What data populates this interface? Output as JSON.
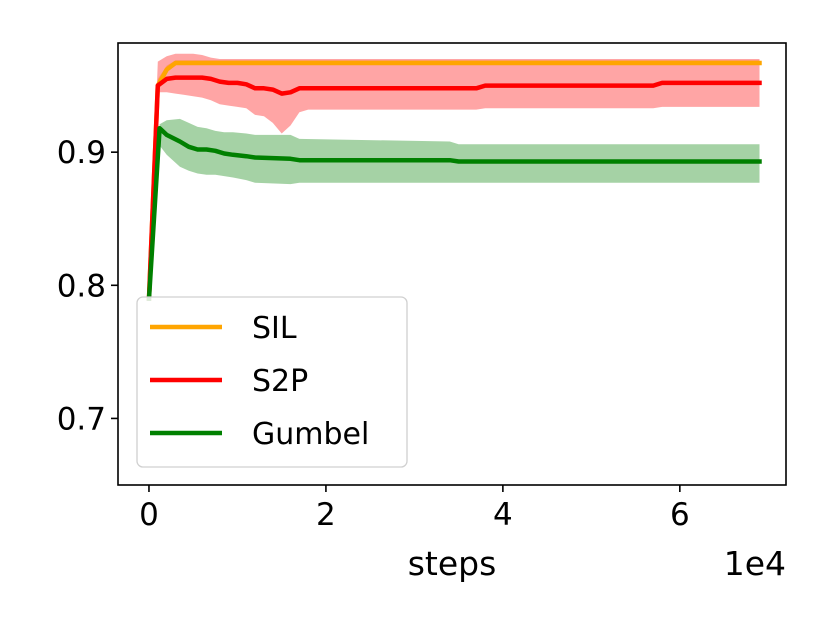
{
  "chart_data": {
    "type": "line",
    "title": "",
    "xlabel": "steps",
    "ylabel": "",
    "x_offset_label": "1e4",
    "x_scale_multiplier": 10000,
    "xlim": [
      -3500,
      72000
    ],
    "ylim": [
      0.65,
      0.982
    ],
    "x_ticks": [
      {
        "value": 0,
        "label": "0"
      },
      {
        "value": 20000,
        "label": "2"
      },
      {
        "value": 40000,
        "label": "4"
      },
      {
        "value": 60000,
        "label": "6"
      }
    ],
    "y_ticks": [
      {
        "value": 0.7,
        "label": "0.7"
      },
      {
        "value": 0.8,
        "label": "0.8"
      },
      {
        "value": 0.9,
        "label": "0.9"
      }
    ],
    "grid": false,
    "legend": {
      "position": "lower-left"
    },
    "series": [
      {
        "name": "SIL",
        "color": "#ffa500",
        "band_color": "#ffa500",
        "x": [
          0,
          1000,
          2000,
          3000,
          5000,
          10000,
          20000,
          35000,
          50000,
          69000
        ],
        "y": [
          0.79,
          0.95,
          0.962,
          0.967,
          0.967,
          0.967,
          0.967,
          0.967,
          0.967,
          0.967
        ],
        "lower": [
          0.79,
          0.945,
          0.96,
          0.966,
          0.966,
          0.966,
          0.966,
          0.966,
          0.966,
          0.966
        ],
        "upper": [
          0.79,
          0.955,
          0.965,
          0.969,
          0.969,
          0.969,
          0.969,
          0.969,
          0.969,
          0.969
        ]
      },
      {
        "name": "S2P",
        "color": "#ff0000",
        "band_color": "#ff7f7f",
        "x": [
          0,
          1000,
          2000,
          3000,
          4000,
          5000,
          6000,
          7000,
          8000,
          9000,
          10000,
          11000,
          12000,
          13000,
          14000,
          15000,
          16000,
          17000,
          18000,
          25000,
          30000,
          37000,
          38000,
          45000,
          50000,
          57000,
          58000,
          63000,
          69000
        ],
        "y": [
          0.79,
          0.95,
          0.955,
          0.956,
          0.956,
          0.956,
          0.956,
          0.955,
          0.953,
          0.952,
          0.952,
          0.951,
          0.948,
          0.948,
          0.947,
          0.944,
          0.945,
          0.948,
          0.948,
          0.948,
          0.948,
          0.948,
          0.95,
          0.95,
          0.95,
          0.95,
          0.952,
          0.952,
          0.952
        ],
        "lower": [
          0.79,
          0.945,
          0.945,
          0.944,
          0.943,
          0.942,
          0.941,
          0.939,
          0.936,
          0.935,
          0.934,
          0.933,
          0.928,
          0.927,
          0.922,
          0.914,
          0.92,
          0.93,
          0.932,
          0.932,
          0.932,
          0.932,
          0.933,
          0.933,
          0.933,
          0.933,
          0.934,
          0.934,
          0.934
        ],
        "upper": [
          0.79,
          0.968,
          0.972,
          0.974,
          0.974,
          0.974,
          0.973,
          0.971,
          0.97,
          0.97,
          0.97,
          0.97,
          0.97,
          0.97,
          0.97,
          0.97,
          0.97,
          0.97,
          0.97,
          0.97,
          0.97,
          0.97,
          0.97,
          0.97,
          0.97,
          0.97,
          0.97,
          0.97,
          0.97
        ]
      },
      {
        "name": "Gumbel",
        "color": "#008000",
        "band_color": "#7fbf7f",
        "x": [
          0,
          1200,
          2000,
          3500,
          4500,
          5500,
          6500,
          7500,
          8500,
          9500,
          11000,
          12000,
          16000,
          17000,
          34000,
          35000,
          69000
        ],
        "y": [
          0.79,
          0.918,
          0.913,
          0.908,
          0.904,
          0.902,
          0.902,
          0.901,
          0.899,
          0.898,
          0.897,
          0.896,
          0.895,
          0.894,
          0.894,
          0.893,
          0.893
        ],
        "lower": [
          0.79,
          0.905,
          0.898,
          0.889,
          0.886,
          0.884,
          0.883,
          0.883,
          0.882,
          0.881,
          0.879,
          0.877,
          0.876,
          0.877,
          0.877,
          0.877,
          0.877
        ],
        "upper": [
          0.79,
          0.921,
          0.924,
          0.925,
          0.922,
          0.919,
          0.918,
          0.916,
          0.915,
          0.915,
          0.914,
          0.913,
          0.913,
          0.91,
          0.908,
          0.906,
          0.906
        ]
      }
    ]
  }
}
